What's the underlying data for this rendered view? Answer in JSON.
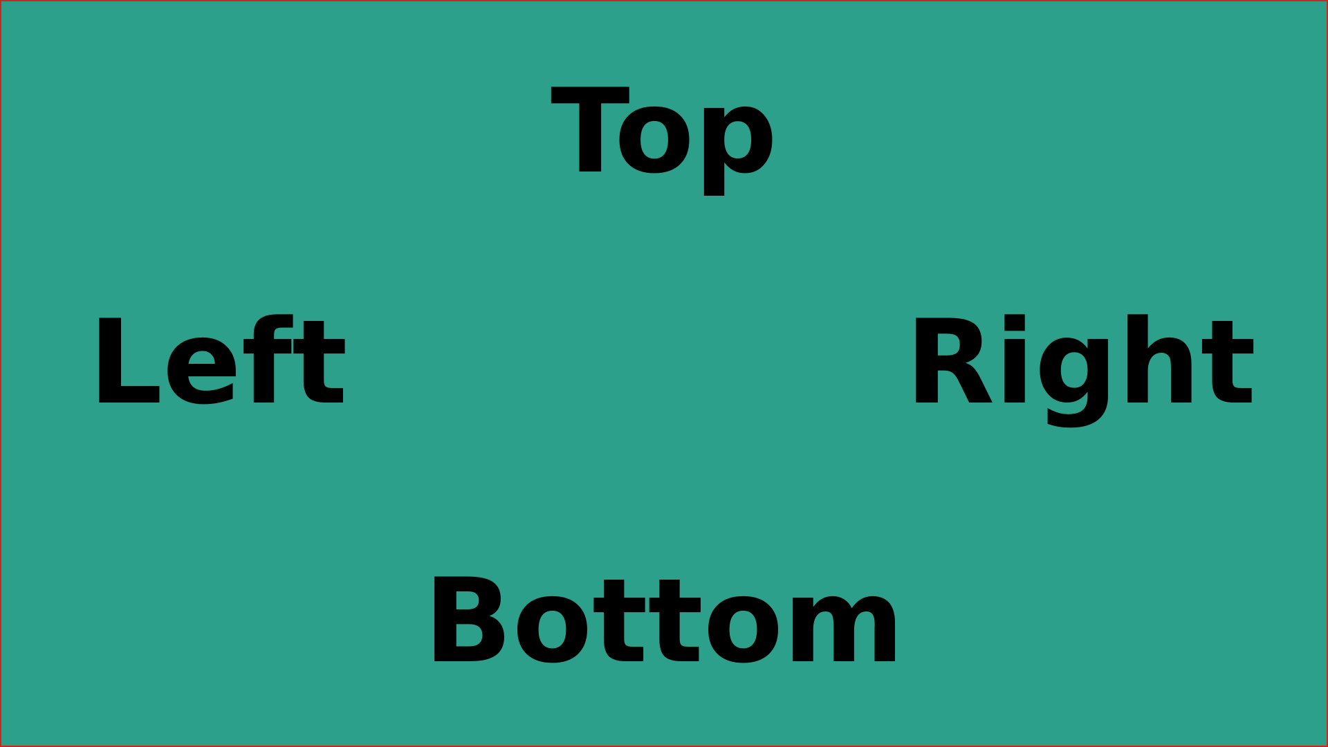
{
  "labels": {
    "top": "Top",
    "left": "Left",
    "right": "Right",
    "bottom": "Bottom"
  },
  "colors": {
    "background": "#2ca08a",
    "border": "#c8281e",
    "text": "#000000"
  }
}
